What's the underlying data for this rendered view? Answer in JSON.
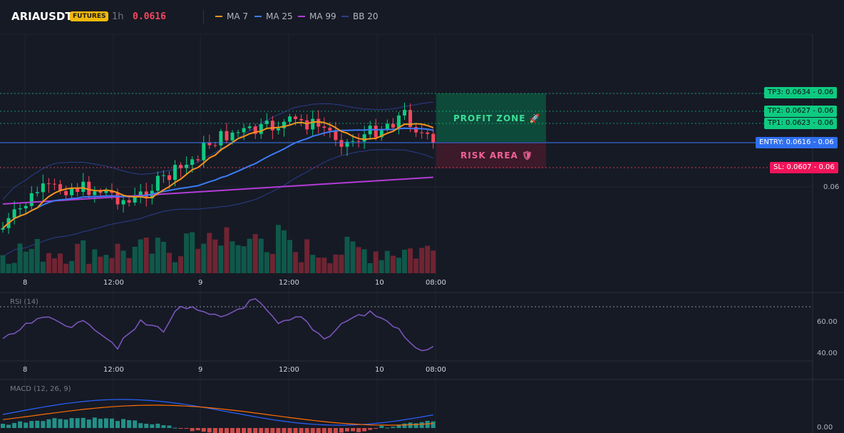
{
  "header": {
    "symbol": "ARIAUSDT",
    "badge": "FUTURES",
    "timeframe": "1h",
    "price": "0.0616",
    "legend": [
      {
        "label": "MA 7",
        "color": "#f7931a"
      },
      {
        "label": "MA 25",
        "color": "#3b7bf6"
      },
      {
        "label": "MA 99",
        "color": "#b23dd6"
      },
      {
        "label": "BB 20",
        "color": "#2b3e8c"
      }
    ]
  },
  "price_levels": {
    "tp3": "TP3: 0.0634",
    "tp2": "TP2: 0.0627",
    "tp1": "TP1: 0.0623",
    "entry": "ENTRY: 0.0616",
    "sl": "SL: 0.0607",
    "axis_value": "0.06"
  },
  "zones": {
    "profit": "PROFIT ZONE",
    "profit_icon": "🚀",
    "risk": "RISK AREA",
    "risk_icon": "🛡"
  },
  "time_axis": [
    "8",
    "12:00",
    "9",
    "12:00",
    "10",
    "08:00"
  ],
  "rsi": {
    "title": "RSI (14)",
    "axis": [
      "60.00",
      "40.00"
    ]
  },
  "macd": {
    "title": "MACD (12, 26, 9)",
    "axis": "0.00"
  },
  "colors": {
    "up": "#0ecb81",
    "down": "#f6465d",
    "profit_zone": "#0e4a3a",
    "risk_zone": "#3c1a2a",
    "entry": "#3b7bf6",
    "rsi_line": "#7e57c2"
  }
}
